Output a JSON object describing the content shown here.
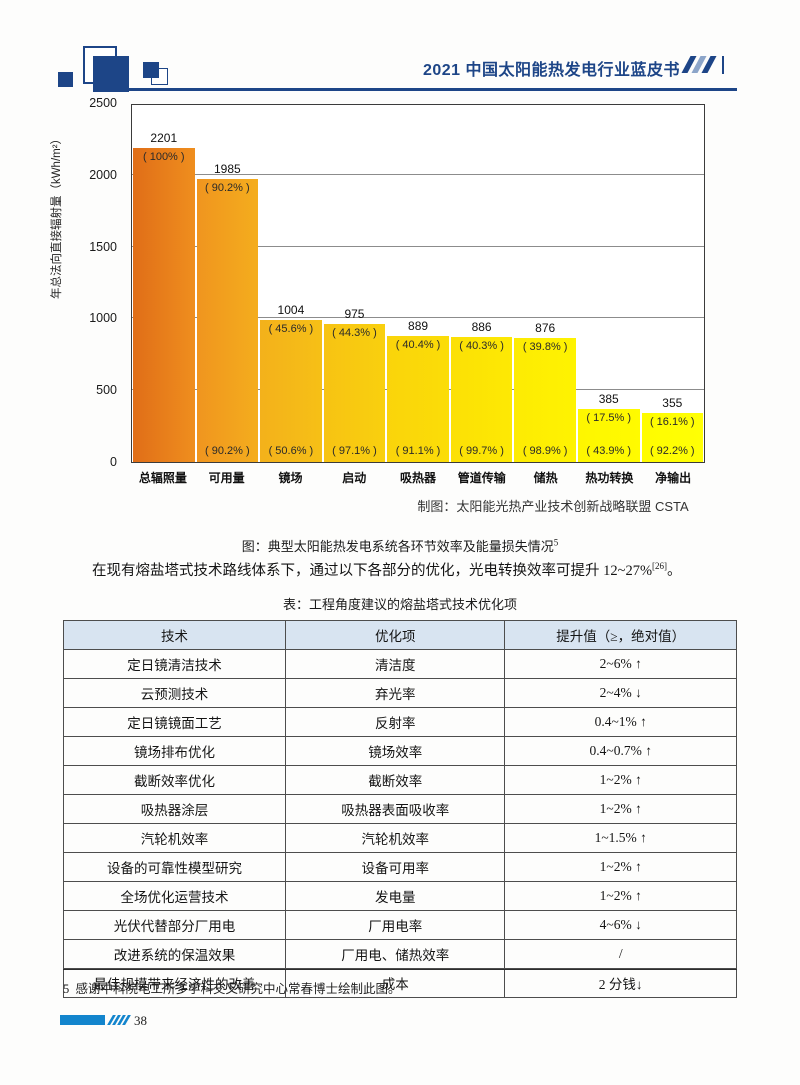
{
  "header": {
    "title": "2021 中国太阳能热发电行业蓝皮书"
  },
  "chart_data": {
    "type": "bar",
    "title": "典型太阳能热发电系统各环节效率及能量损失情况",
    "ylabel": "年总法向直接辐射量（kWh/m²）",
    "ylim": [
      0,
      2500
    ],
    "y_ticks": [
      0,
      500,
      1000,
      1500,
      2000,
      2500
    ],
    "gridlines": [
      500,
      1000,
      1500,
      2000
    ],
    "grid": "horizontal",
    "legend": "none",
    "categories": [
      "总辐照量",
      "可用量",
      "镜场",
      "启动",
      "吸热器",
      "管道传输",
      "储热",
      "热功转换",
      "净输出"
    ],
    "values": [
      2201,
      1985,
      1004,
      975,
      889,
      886,
      876,
      385,
      355
    ],
    "cumulative_pct": [
      "( 100% )",
      "( 90.2% )",
      "( 45.6% )",
      "( 44.3% )",
      "( 40.4% )",
      "( 40.3% )",
      "( 39.8% )",
      "( 17.5% )",
      "( 16.1% )"
    ],
    "step_pct": [
      "",
      "( 90.2% )",
      "( 50.6% )",
      "( 97.1% )",
      "( 91.1% )",
      "( 99.7% )",
      "( 98.9% )",
      "( 43.9% )",
      "( 92.2% )"
    ],
    "bar_colors": [
      [
        "#e06e18",
        "#ef8e1e"
      ],
      [
        "#f0951f",
        "#f4ad1d"
      ],
      [
        "#f3b11b",
        "#f6c016"
      ],
      [
        "#f7c313",
        "#f9d00e"
      ],
      [
        "#fad40b",
        "#fbdd07"
      ],
      [
        "#fce005",
        "#fde904"
      ],
      [
        "#fdeb03",
        "#fef301"
      ],
      [
        "#fef600",
        "#fffb00"
      ],
      [
        "#fffc00",
        "#ffff05"
      ]
    ],
    "credit": "制图：太阳能光热产业技术创新战略联盟 CSTA"
  },
  "figure_caption": {
    "prefix": "图：典型太阳能热发电系统各环节效率及能量损失情况",
    "sup": "5"
  },
  "paragraph": {
    "text": "在现有熔盐塔式技术路线体系下，通过以下各部分的优化，光电转换效率可提升 12~27%",
    "sup": "[26]",
    "tail": "。"
  },
  "table": {
    "caption": "表：工程角度建议的熔盐塔式技术优化项",
    "headers": [
      "技术",
      "优化项",
      "提升值（≥，绝对值）"
    ],
    "rows": [
      [
        "定日镜清洁技术",
        "清洁度",
        "2~6%  ↑"
      ],
      [
        "云预测技术",
        "弃光率",
        "2~4%  ↓"
      ],
      [
        "定日镜镜面工艺",
        "反射率",
        "0.4~1%  ↑"
      ],
      [
        "镜场排布优化",
        "镜场效率",
        "0.4~0.7% ↑"
      ],
      [
        "截断效率优化",
        "截断效率",
        "1~2%  ↑"
      ],
      [
        "吸热器涂层",
        "吸热器表面吸收率",
        "1~2%  ↑"
      ],
      [
        "汽轮机效率",
        "汽轮机效率",
        "1~1.5% ↑"
      ],
      [
        "设备的可靠性模型研究",
        "设备可用率",
        "1~2%  ↑"
      ],
      [
        "全场优化运营技术",
        "发电量",
        "1~2%  ↑"
      ],
      [
        "光伏代替部分厂用电",
        "厂用电率",
        "4~6%  ↓"
      ],
      [
        "改进系统的保温效果",
        "厂用电、储热效率",
        "/"
      ],
      [
        "最佳规模带来经济性的改善",
        "成本",
        "2 分钱↓"
      ]
    ]
  },
  "footnote": {
    "marker": "5",
    "text": "感谢中科院电工所多学科交叉研究中心常春博士绘制此图。"
  },
  "footer": {
    "page_number": "38"
  },
  "colors": {
    "navy": "#1d4587",
    "footer_blue": "#1385cd",
    "header_slash_light": "#8ca5c9",
    "table_header_bg": "#d8e4f1"
  }
}
